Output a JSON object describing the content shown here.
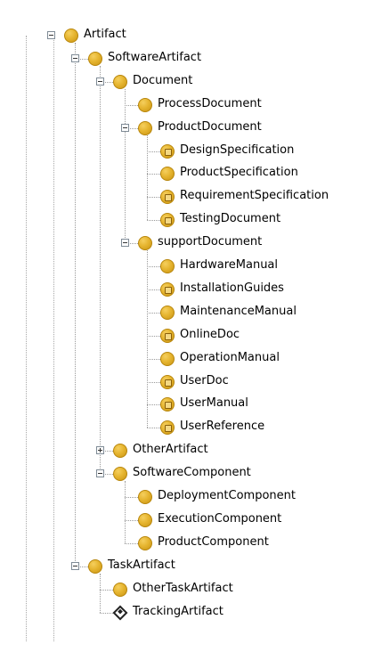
{
  "tree": {
    "nodes": [
      {
        "label": "Artifact",
        "level": 0,
        "expander": "minus",
        "icon": "filled-circle-icon"
      },
      {
        "label": "SoftwareArtifact",
        "level": 1,
        "expander": "minus",
        "icon": "filled-circle-icon"
      },
      {
        "label": "Document",
        "level": 2,
        "expander": "minus",
        "icon": "filled-circle-icon"
      },
      {
        "label": "ProcessDocument",
        "level": 3,
        "expander": "none",
        "icon": "filled-circle-icon"
      },
      {
        "label": "ProductDocument",
        "level": 3,
        "expander": "minus",
        "icon": "filled-circle-icon"
      },
      {
        "label": "DesignSpecification",
        "level": 4,
        "expander": "none",
        "icon": "instance-circle-icon"
      },
      {
        "label": "ProductSpecification",
        "level": 4,
        "expander": "none",
        "icon": "filled-circle-icon"
      },
      {
        "label": "RequirementSpecification",
        "level": 4,
        "expander": "none",
        "icon": "instance-circle-icon"
      },
      {
        "label": "TestingDocument",
        "level": 4,
        "expander": "none",
        "icon": "instance-circle-icon"
      },
      {
        "label": "supportDocument",
        "level": 3,
        "expander": "minus",
        "icon": "filled-circle-icon"
      },
      {
        "label": "HardwareManual",
        "level": 4,
        "expander": "none",
        "icon": "filled-circle-icon"
      },
      {
        "label": "InstallationGuides",
        "level": 4,
        "expander": "none",
        "icon": "instance-circle-icon"
      },
      {
        "label": "MaintenanceManual",
        "level": 4,
        "expander": "none",
        "icon": "filled-circle-icon"
      },
      {
        "label": "OnlineDoc",
        "level": 4,
        "expander": "none",
        "icon": "instance-circle-icon"
      },
      {
        "label": "OperationManual",
        "level": 4,
        "expander": "none",
        "icon": "filled-circle-icon"
      },
      {
        "label": "UserDoc",
        "level": 4,
        "expander": "none",
        "icon": "instance-circle-icon"
      },
      {
        "label": "UserManual",
        "level": 4,
        "expander": "none",
        "icon": "instance-circle-icon"
      },
      {
        "label": "UserReference",
        "level": 4,
        "expander": "none",
        "icon": "instance-circle-icon"
      },
      {
        "label": "OtherArtifact",
        "level": 2,
        "expander": "plus",
        "icon": "filled-circle-icon"
      },
      {
        "label": "SoftwareComponent",
        "level": 2,
        "expander": "minus",
        "icon": "filled-circle-icon"
      },
      {
        "label": "DeploymentComponent",
        "level": 3,
        "expander": "none",
        "icon": "filled-circle-icon"
      },
      {
        "label": "ExecutionComponent",
        "level": 3,
        "expander": "none",
        "icon": "filled-circle-icon"
      },
      {
        "label": "ProductComponent",
        "level": 3,
        "expander": "none",
        "icon": "filled-circle-icon"
      },
      {
        "label": "TaskArtifact",
        "level": 1,
        "expander": "minus",
        "icon": "filled-circle-icon"
      },
      {
        "label": "OtherTaskArtifact",
        "level": 2,
        "expander": "none",
        "icon": "filled-circle-icon"
      },
      {
        "label": "TrackingArtifact",
        "level": 2,
        "expander": "none",
        "icon": "diamond-icon"
      }
    ]
  },
  "colors": {
    "icon_fill": "#e6b530",
    "icon_border": "#b8860b",
    "guide_line": "#9a9a9a"
  }
}
